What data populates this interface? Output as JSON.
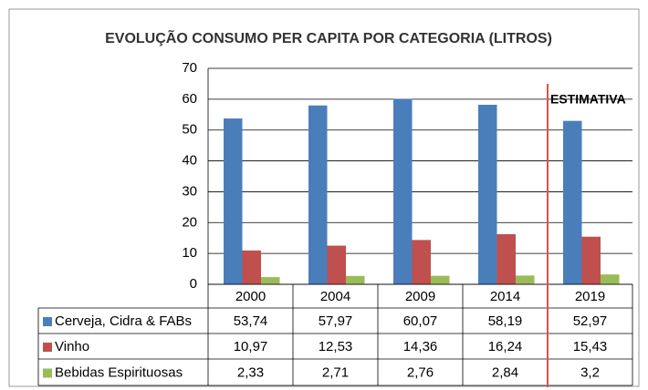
{
  "chart_data": {
    "type": "bar",
    "title": "EVOLUÇÃO CONSUMO PER CAPITA POR CATEGORIA (LITROS)",
    "categories": [
      "2000",
      "2004",
      "2009",
      "2014",
      "2019"
    ],
    "series": [
      {
        "name": "Cerveja, Cidra & FABs",
        "color": "#4a7ebb",
        "values": [
          53.74,
          57.97,
          60.07,
          58.19,
          52.97
        ],
        "value_labels": [
          "53,74",
          "57,97",
          "60,07",
          "58,19",
          "52,97"
        ]
      },
      {
        "name": "Vinho",
        "color": "#c0504d",
        "values": [
          10.97,
          12.53,
          14.36,
          16.24,
          15.43
        ],
        "value_labels": [
          "10,97",
          "12,53",
          "14,36",
          "16,24",
          "15,43"
        ]
      },
      {
        "name": "Bebidas Espirituosas",
        "color": "#9bbb59",
        "values": [
          2.33,
          2.71,
          2.76,
          2.84,
          3.2
        ],
        "value_labels": [
          "2,33",
          "2,71",
          "2,76",
          "2,84",
          "3,2"
        ]
      }
    ],
    "ylim": [
      0,
      70
    ],
    "yticks": [
      0,
      10,
      20,
      30,
      40,
      50,
      60,
      70
    ],
    "grid": true,
    "annotation": {
      "text": "ESTIMATIVA",
      "color": "#e05050"
    }
  }
}
